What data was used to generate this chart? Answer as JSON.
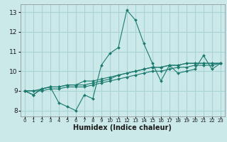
{
  "xlabel": "Humidex (Indice chaleur)",
  "ylabel": "",
  "bg_color": "#cce9ea",
  "grid_color": "#a8d4d5",
  "line_color": "#1a7a6e",
  "xlim": [
    -0.5,
    23.5
  ],
  "ylim": [
    7.7,
    13.4
  ],
  "xticks": [
    0,
    1,
    2,
    3,
    4,
    5,
    6,
    7,
    8,
    9,
    10,
    11,
    12,
    13,
    14,
    15,
    16,
    17,
    18,
    19,
    20,
    21,
    22,
    23
  ],
  "yticks": [
    8,
    9,
    10,
    11,
    12,
    13
  ],
  "series": [
    [
      9.0,
      8.8,
      9.1,
      9.2,
      8.4,
      8.2,
      8.0,
      8.8,
      8.6,
      10.3,
      10.9,
      11.2,
      13.1,
      12.6,
      11.4,
      10.4,
      9.5,
      10.3,
      9.9,
      10.0,
      10.1,
      10.8,
      10.1,
      10.4
    ],
    [
      9.0,
      8.8,
      9.1,
      9.2,
      9.2,
      9.3,
      9.3,
      9.5,
      9.5,
      9.6,
      9.7,
      9.8,
      9.9,
      10.0,
      10.1,
      10.2,
      10.2,
      10.3,
      10.3,
      10.4,
      10.4,
      10.4,
      10.4,
      10.4
    ],
    [
      9.0,
      9.0,
      9.1,
      9.2,
      9.2,
      9.3,
      9.3,
      9.3,
      9.4,
      9.5,
      9.6,
      9.8,
      9.9,
      10.0,
      10.1,
      10.2,
      10.2,
      10.3,
      10.3,
      10.4,
      10.4,
      10.4,
      10.4,
      10.4
    ],
    [
      9.0,
      9.0,
      9.0,
      9.1,
      9.1,
      9.2,
      9.2,
      9.2,
      9.3,
      9.4,
      9.5,
      9.6,
      9.7,
      9.8,
      9.9,
      10.0,
      10.0,
      10.1,
      10.2,
      10.2,
      10.3,
      10.3,
      10.3,
      10.4
    ]
  ],
  "xtick_fontsize": 5.0,
  "ytick_fontsize": 6.5,
  "xlabel_fontsize": 7.0
}
